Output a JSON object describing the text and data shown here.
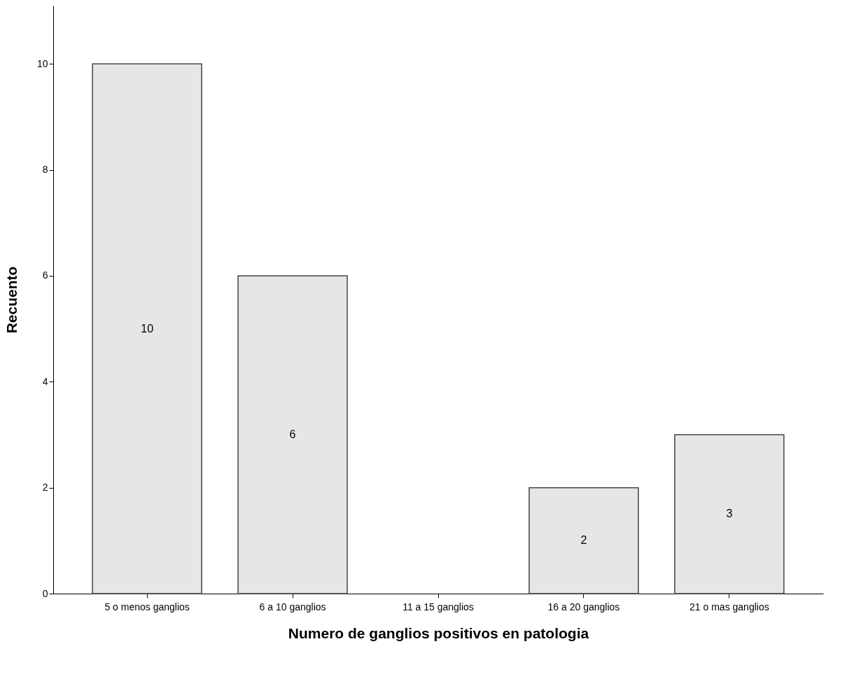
{
  "chart_data": {
    "type": "bar",
    "xlabel": "Numero de ganglios positivos en patologia",
    "ylabel": "Recuento",
    "categories": [
      "5 o menos ganglios",
      "6 a 10 ganglios",
      "11 a 15 ganglios",
      "16 a 20 ganglios",
      "21 o mas ganglios"
    ],
    "values": [
      10,
      6,
      0,
      2,
      3
    ],
    "value_labels": [
      "10",
      "6",
      null,
      "2",
      "3"
    ],
    "color": "#e6e6e6",
    "ylim": [
      0,
      11.1
    ],
    "yticks": [
      0,
      2,
      4,
      6,
      8,
      10
    ],
    "grid": false
  }
}
